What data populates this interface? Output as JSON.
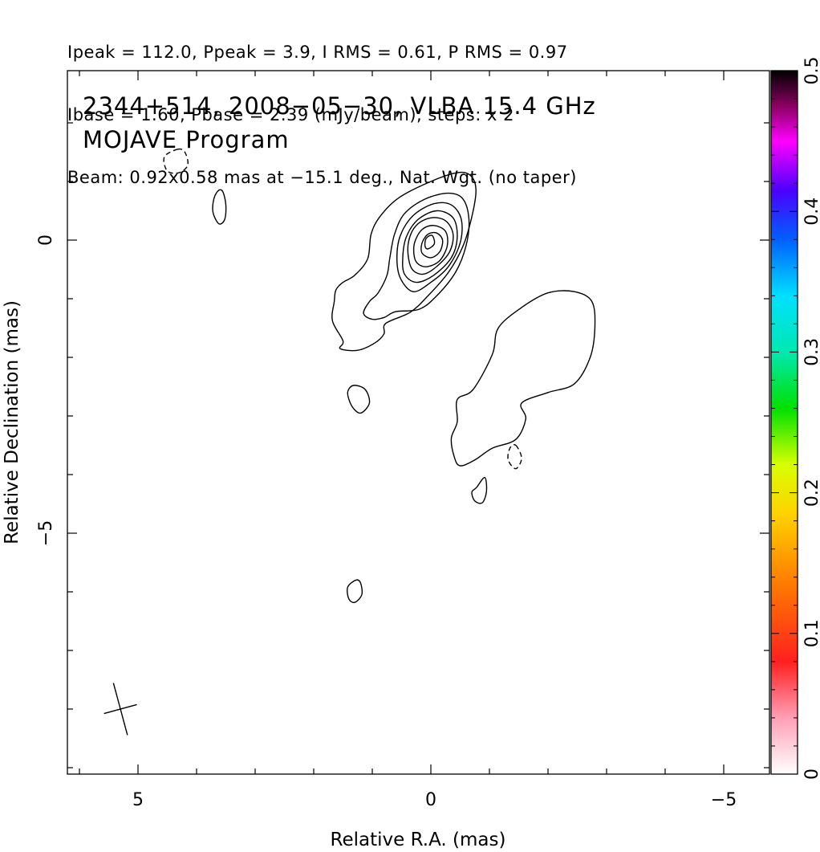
{
  "header_lines": [
    "Ipeak = 112.0, Ppeak = 3.9, I RMS = 0.61, P RMS = 0.97",
    "Ibase = 1.60, Pbase = 2.39 (mJy/beam), steps: x 2",
    "Beam: 0.92x0.58 mas at −15.1 deg., Nat. Wgt. (no taper)"
  ],
  "chart_data": {
    "type": "contour",
    "title_lines": [
      "2344+514, 2008−05−30, VLBA 15.4 GHz",
      "MOJAVE Program"
    ],
    "xlabel": "Relative R.A. (mas)",
    "ylabel": "Relative Declination (mas)",
    "xlim": [
      6.0,
      -6.0
    ],
    "ylim": [
      -9.0,
      3.0
    ],
    "x_ticks": [
      5,
      0,
      -5
    ],
    "x_tick_labels": [
      "5",
      "0",
      "−5"
    ],
    "y_ticks": [
      0,
      -5
    ],
    "y_tick_labels": [
      "0",
      "−5"
    ],
    "colorbar": {
      "range": [
        0,
        0.5
      ],
      "ticks": [
        0,
        0.1,
        0.2,
        0.3,
        0.4,
        0.5
      ],
      "tick_labels": [
        "0",
        "0.1",
        "0.2",
        "0.3",
        "0.4",
        "0.5"
      ]
    },
    "contours": [
      {
        "id": "core-1",
        "dashed": false,
        "points": [
          [
            0.77,
            -1.42
          ],
          [
            0.35,
            -1.23
          ],
          [
            0.05,
            -0.95
          ],
          [
            -0.3,
            -0.55
          ],
          [
            -0.55,
            -0.1
          ],
          [
            -0.7,
            0.4
          ],
          [
            -0.77,
            0.85
          ],
          [
            -0.68,
            1.1
          ],
          [
            -0.45,
            1.15
          ],
          [
            0.0,
            1.0
          ],
          [
            0.55,
            0.72
          ],
          [
            0.87,
            0.4
          ],
          [
            1.02,
            0.1
          ],
          [
            1.08,
            -0.32
          ],
          [
            1.3,
            -0.6
          ],
          [
            1.5,
            -0.72
          ],
          [
            1.62,
            -0.85
          ],
          [
            1.65,
            -1.05
          ],
          [
            1.68,
            -1.38
          ],
          [
            1.5,
            -1.72
          ],
          [
            1.55,
            -1.85
          ],
          [
            1.25,
            -1.88
          ],
          [
            0.95,
            -1.75
          ],
          [
            0.8,
            -1.6
          ]
        ]
      },
      {
        "id": "core-2",
        "dashed": false,
        "points": [
          [
            0.6,
            -1.22
          ],
          [
            0.2,
            -1.18
          ],
          [
            -0.1,
            -0.95
          ],
          [
            -0.42,
            -0.55
          ],
          [
            -0.6,
            -0.1
          ],
          [
            -0.65,
            0.35
          ],
          [
            -0.55,
            0.7
          ],
          [
            -0.3,
            0.8
          ],
          [
            0.1,
            0.7
          ],
          [
            0.45,
            0.45
          ],
          [
            0.62,
            0.1
          ],
          [
            0.7,
            -0.3
          ],
          [
            0.75,
            -0.6
          ],
          [
            0.9,
            -0.9
          ],
          [
            1.05,
            -1.05
          ],
          [
            1.15,
            -1.25
          ],
          [
            1.0,
            -1.35
          ],
          [
            0.8,
            -1.32
          ]
        ]
      },
      {
        "id": "core-3",
        "dashed": false,
        "points": [
          [
            0.3,
            -0.88
          ],
          [
            0.0,
            -0.72
          ],
          [
            -0.3,
            -0.45
          ],
          [
            -0.5,
            -0.05
          ],
          [
            -0.52,
            0.35
          ],
          [
            -0.35,
            0.6
          ],
          [
            -0.05,
            0.62
          ],
          [
            0.3,
            0.42
          ],
          [
            0.52,
            0.08
          ],
          [
            0.58,
            -0.3
          ],
          [
            0.52,
            -0.65
          ]
        ]
      },
      {
        "id": "core-4",
        "dashed": false,
        "points": [
          [
            0.25,
            -0.72
          ],
          [
            -0.05,
            -0.6
          ],
          [
            -0.35,
            -0.3
          ],
          [
            -0.45,
            0.05
          ],
          [
            -0.38,
            0.38
          ],
          [
            -0.1,
            0.5
          ],
          [
            0.22,
            0.35
          ],
          [
            0.42,
            0.05
          ],
          [
            0.48,
            -0.3
          ],
          [
            0.45,
            -0.58
          ]
        ]
      },
      {
        "id": "core-5",
        "dashed": false,
        "points": [
          [
            0.12,
            -0.58
          ],
          [
            -0.1,
            -0.45
          ],
          [
            -0.32,
            -0.2
          ],
          [
            -0.38,
            0.1
          ],
          [
            -0.25,
            0.33
          ],
          [
            0.0,
            0.38
          ],
          [
            0.25,
            0.25
          ],
          [
            0.38,
            -0.02
          ],
          [
            0.38,
            -0.32
          ],
          [
            0.3,
            -0.52
          ]
        ]
      },
      {
        "id": "core-6",
        "dashed": false,
        "points": [
          [
            0.05,
            -0.45
          ],
          [
            -0.15,
            -0.35
          ],
          [
            -0.28,
            -0.1
          ],
          [
            -0.25,
            0.15
          ],
          [
            -0.05,
            0.25
          ],
          [
            0.15,
            0.18
          ],
          [
            0.28,
            -0.05
          ],
          [
            0.28,
            -0.3
          ],
          [
            0.2,
            -0.42
          ]
        ]
      },
      {
        "id": "core-7",
        "dashed": false,
        "points": [
          [
            0.0,
            -0.3
          ],
          [
            -0.15,
            -0.2
          ],
          [
            -0.2,
            0.0
          ],
          [
            -0.1,
            0.12
          ],
          [
            0.05,
            0.1
          ],
          [
            0.15,
            -0.05
          ],
          [
            0.15,
            -0.22
          ]
        ]
      },
      {
        "id": "core-8",
        "dashed": false,
        "points": [
          [
            0.05,
            -0.15
          ],
          [
            -0.06,
            -0.06
          ],
          [
            -0.02,
            0.08
          ],
          [
            0.08,
            0.03
          ],
          [
            0.1,
            -0.1
          ]
        ]
      },
      {
        "id": "jet-blob",
        "dashed": false,
        "points": [
          [
            -0.5,
            -3.85
          ],
          [
            -0.75,
            -3.75
          ],
          [
            -1.05,
            -3.55
          ],
          [
            -1.45,
            -3.4
          ],
          [
            -1.62,
            -3.05
          ],
          [
            -1.55,
            -2.78
          ],
          [
            -2.0,
            -2.6
          ],
          [
            -2.45,
            -2.45
          ],
          [
            -2.72,
            -2.0
          ],
          [
            -2.8,
            -1.5
          ],
          [
            -2.75,
            -1.05
          ],
          [
            -2.45,
            -0.88
          ],
          [
            -2.0,
            -0.9
          ],
          [
            -1.55,
            -1.15
          ],
          [
            -1.15,
            -1.5
          ],
          [
            -1.05,
            -1.95
          ],
          [
            -0.72,
            -2.55
          ],
          [
            -0.45,
            -2.72
          ],
          [
            -0.45,
            -3.1
          ],
          [
            -0.35,
            -3.38
          ],
          [
            -0.4,
            -3.7
          ]
        ]
      },
      {
        "id": "blob-a",
        "dashed": false,
        "points": [
          [
            1.32,
            -2.48
          ],
          [
            1.12,
            -2.55
          ],
          [
            1.05,
            -2.78
          ],
          [
            1.2,
            -2.95
          ],
          [
            1.35,
            -2.83
          ],
          [
            1.42,
            -2.6
          ]
        ]
      },
      {
        "id": "blob-b",
        "dashed": false,
        "points": [
          [
            -0.78,
            -4.22
          ],
          [
            -0.92,
            -4.05
          ],
          [
            -0.95,
            -4.28
          ],
          [
            -0.88,
            -4.48
          ],
          [
            -0.75,
            -4.45
          ],
          [
            -0.7,
            -4.3
          ]
        ]
      },
      {
        "id": "blob-c",
        "dashed": false,
        "points": [
          [
            1.28,
            -5.8
          ],
          [
            1.42,
            -5.92
          ],
          [
            1.4,
            -6.12
          ],
          [
            1.3,
            -6.18
          ],
          [
            1.18,
            -6.05
          ],
          [
            1.2,
            -5.85
          ]
        ]
      },
      {
        "id": "blob-d",
        "dashed": false,
        "points": [
          [
            3.55,
            0.82
          ],
          [
            3.5,
            0.6
          ],
          [
            3.52,
            0.35
          ],
          [
            3.62,
            0.28
          ],
          [
            3.72,
            0.48
          ],
          [
            3.7,
            0.72
          ],
          [
            3.62,
            0.85
          ]
        ]
      },
      {
        "id": "neg-1",
        "dashed": true,
        "points": [
          [
            4.32,
            1.55
          ],
          [
            4.55,
            1.42
          ],
          [
            4.5,
            1.18
          ],
          [
            4.3,
            1.15
          ],
          [
            4.15,
            1.28
          ],
          [
            4.2,
            1.5
          ]
        ]
      },
      {
        "id": "neg-2",
        "dashed": true,
        "points": [
          [
            -1.45,
            -3.5
          ],
          [
            -1.55,
            -3.72
          ],
          [
            -1.45,
            -3.9
          ],
          [
            -1.32,
            -3.75
          ],
          [
            -1.35,
            -3.55
          ]
        ]
      }
    ],
    "beam": {
      "major": 0.92,
      "minor": 0.58,
      "pa_deg": -15.1,
      "center": [
        5.3,
        -8.0
      ]
    }
  }
}
